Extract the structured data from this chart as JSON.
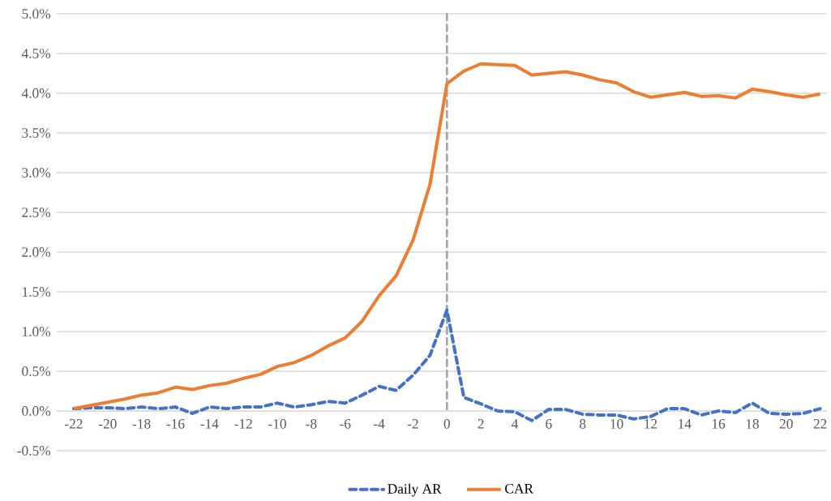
{
  "chart_data": {
    "type": "line",
    "x": [
      -22,
      -21,
      -20,
      -19,
      -18,
      -17,
      -16,
      -15,
      -14,
      -13,
      -12,
      -11,
      -10,
      -9,
      -8,
      -7,
      -6,
      -5,
      -4,
      -3,
      -2,
      -1,
      0,
      1,
      2,
      3,
      4,
      5,
      6,
      7,
      8,
      9,
      10,
      11,
      12,
      13,
      14,
      15,
      16,
      17,
      18,
      19,
      20,
      21,
      22
    ],
    "series": [
      {
        "name": "Daily AR",
        "color": "#4472c4",
        "line_style": "dashed",
        "values": [
          0.03,
          0.04,
          0.04,
          0.03,
          0.05,
          0.03,
          0.05,
          -0.03,
          0.05,
          0.03,
          0.05,
          0.05,
          0.1,
          0.05,
          0.08,
          0.12,
          0.1,
          0.2,
          0.31,
          0.26,
          0.45,
          0.7,
          1.27,
          0.17,
          0.09,
          0.0,
          -0.01,
          -0.12,
          0.02,
          0.02,
          -0.04,
          -0.05,
          -0.05,
          -0.1,
          -0.07,
          0.03,
          0.03,
          -0.05,
          0.0,
          -0.02,
          0.1,
          -0.03,
          -0.04,
          -0.03,
          0.03
        ]
      },
      {
        "name": "CAR",
        "color": "#ed7d31",
        "line_style": "solid",
        "values": [
          0.03,
          0.07,
          0.11,
          0.15,
          0.2,
          0.23,
          0.3,
          0.27,
          0.32,
          0.35,
          0.41,
          0.46,
          0.56,
          0.61,
          0.7,
          0.82,
          0.92,
          1.13,
          1.45,
          1.7,
          2.15,
          2.85,
          4.12,
          4.28,
          4.37,
          4.36,
          4.35,
          4.23,
          4.25,
          4.27,
          4.23,
          4.17,
          4.13,
          4.02,
          3.95,
          3.98,
          4.01,
          3.96,
          3.97,
          3.94,
          4.05,
          4.02,
          3.98,
          3.95,
          3.99
        ]
      }
    ],
    "xlim": [
      -23,
      22.4
    ],
    "xticks": [
      -22,
      -20,
      -18,
      -16,
      -14,
      -12,
      -10,
      -8,
      -6,
      -4,
      -2,
      0,
      2,
      4,
      6,
      8,
      10,
      12,
      14,
      16,
      18,
      20,
      22
    ],
    "ylim": [
      -0.5,
      5.0
    ],
    "yticks": [
      {
        "value": -0.5,
        "label": "-0.5%"
      },
      {
        "value": 0.0,
        "label": "0.0%"
      },
      {
        "value": 0.5,
        "label": "0.5%"
      },
      {
        "value": 1.0,
        "label": "1.0%"
      },
      {
        "value": 1.5,
        "label": "1.5%"
      },
      {
        "value": 2.0,
        "label": "2.0%"
      },
      {
        "value": 2.5,
        "label": "2.5%"
      },
      {
        "value": 3.0,
        "label": "3.0%"
      },
      {
        "value": 3.5,
        "label": "3.5%"
      },
      {
        "value": 4.0,
        "label": "4.0%"
      },
      {
        "value": 4.5,
        "label": "4.5%"
      },
      {
        "value": 5.0,
        "label": "5.0%"
      }
    ],
    "ref_lines": [
      {
        "axis": "x",
        "value": 0,
        "color": "#a5a5a5",
        "line_style": "dashed"
      }
    ],
    "grid": "y",
    "legend": "bottom",
    "marker": "none"
  }
}
